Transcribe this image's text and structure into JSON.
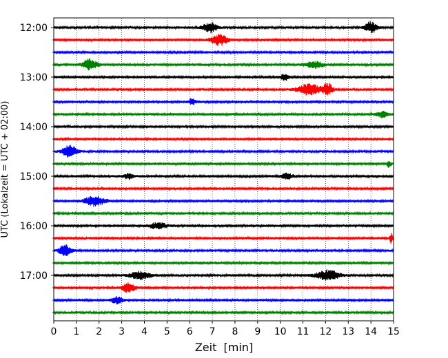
{
  "chart_data": {
    "type": "line",
    "title": "",
    "xlabel": "Zeit  [min]",
    "ylabel": "UTC (Lokalzeit = UTC + 02:00)",
    "xlim": [
      0,
      15
    ],
    "xticks": [
      0,
      1,
      2,
      3,
      4,
      5,
      6,
      7,
      8,
      9,
      10,
      11,
      12,
      13,
      14,
      15
    ],
    "x_grid": "dotted vertical lines at every minute",
    "y_tick_labels": [
      "12:00",
      "13:00",
      "14:00",
      "15:00",
      "16:00",
      "17:00"
    ],
    "trace_start_times_utc": [
      "12:00",
      "12:15",
      "12:30",
      "12:45",
      "13:00",
      "13:15",
      "13:30",
      "13:45",
      "14:00",
      "14:15",
      "14:30",
      "14:45",
      "15:00",
      "15:15",
      "15:30",
      "15:45",
      "16:00",
      "16:15",
      "16:30",
      "16:45",
      "17:00",
      "17:15",
      "17:30",
      "17:45"
    ],
    "trace_colors": [
      "#000000",
      "#ff0000",
      "#0000ff",
      "#008000"
    ],
    "events": [
      {
        "trace": "12:00",
        "minute": 6.9,
        "amplitude": 0.85,
        "width_min": 0.6
      },
      {
        "trace": "12:00",
        "minute": 14.0,
        "amplitude": 0.95,
        "width_min": 0.5
      },
      {
        "trace": "12:15",
        "minute": 7.3,
        "amplitude": 0.9,
        "width_min": 0.7
      },
      {
        "trace": "12:45",
        "minute": 1.6,
        "amplitude": 0.9,
        "width_min": 0.6
      },
      {
        "trace": "12:45",
        "minute": 11.5,
        "amplitude": 0.5,
        "width_min": 0.8
      },
      {
        "trace": "13:00",
        "minute": 10.2,
        "amplitude": 0.6,
        "width_min": 0.3
      },
      {
        "trace": "13:15",
        "minute": 11.3,
        "amplitude": 0.9,
        "width_min": 1.0
      },
      {
        "trace": "13:15",
        "minute": 12.1,
        "amplitude": 1.0,
        "width_min": 0.4
      },
      {
        "trace": "13:30",
        "minute": 6.1,
        "amplitude": 0.5,
        "width_min": 0.3
      },
      {
        "trace": "13:45",
        "minute": 14.5,
        "amplitude": 0.45,
        "width_min": 0.5
      },
      {
        "trace": "14:30",
        "minute": 0.7,
        "amplitude": 0.95,
        "width_min": 0.6
      },
      {
        "trace": "14:45",
        "minute": 14.8,
        "amplitude": 0.5,
        "width_min": 0.2
      },
      {
        "trace": "15:00",
        "minute": 3.3,
        "amplitude": 0.45,
        "width_min": 0.4
      },
      {
        "trace": "15:00",
        "minute": 10.3,
        "amplitude": 0.45,
        "width_min": 0.5
      },
      {
        "trace": "15:30",
        "minute": 1.8,
        "amplitude": 0.75,
        "width_min": 0.9
      },
      {
        "trace": "16:00",
        "minute": 4.6,
        "amplitude": 0.45,
        "width_min": 0.8
      },
      {
        "trace": "16:15",
        "minute": 14.9,
        "amplitude": 0.8,
        "width_min": 0.15
      },
      {
        "trace": "16:30",
        "minute": 0.5,
        "amplitude": 1.0,
        "width_min": 0.5
      },
      {
        "trace": "17:00",
        "minute": 3.8,
        "amplitude": 0.6,
        "width_min": 0.9
      },
      {
        "trace": "17:00",
        "minute": 12.1,
        "amplitude": 0.8,
        "width_min": 1.0
      },
      {
        "trace": "17:15",
        "minute": 3.3,
        "amplitude": 0.75,
        "width_min": 0.6
      },
      {
        "trace": "17:30",
        "minute": 2.8,
        "amplitude": 0.55,
        "width_min": 0.5
      }
    ]
  }
}
